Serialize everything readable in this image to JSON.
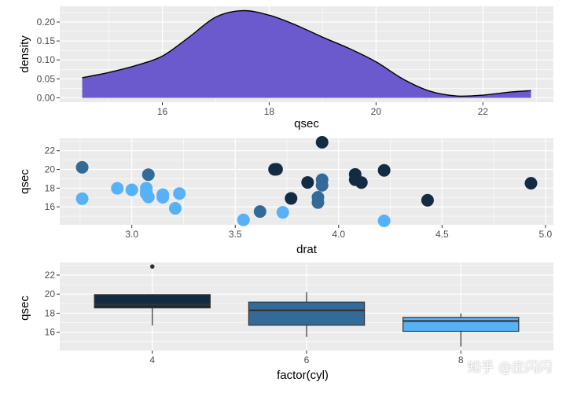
{
  "colors": {
    "panel_bg": "#ebebeb",
    "grid_major": "#ffffff",
    "density_fill": "#6a5acd",
    "box_fill_by_cyl": {
      "4": "#132b43",
      "6": "#336a98",
      "8": "#56b1f7"
    }
  },
  "watermark": "知乎 @庄闪闪",
  "chart_data": [
    {
      "type": "area",
      "title": "",
      "xlabel": "qsec",
      "ylabel": "density",
      "xlim": [
        14.5,
        22.9
      ],
      "ylim": [
        0,
        0.23
      ],
      "x_ticks": [
        16,
        18,
        20,
        22
      ],
      "y_ticks": [
        0.0,
        0.05,
        0.1,
        0.15,
        0.2
      ],
      "y_tick_labels": [
        "0.00",
        "0.05",
        "0.10",
        "0.15",
        "0.20"
      ],
      "grid": true,
      "x": [
        14.5,
        15.0,
        15.5,
        16.0,
        16.5,
        17.0,
        17.5,
        18.0,
        18.5,
        19.0,
        19.5,
        20.0,
        20.5,
        21.0,
        21.5,
        22.0,
        22.5,
        22.9
      ],
      "y": [
        0.053,
        0.067,
        0.085,
        0.11,
        0.16,
        0.213,
        0.23,
        0.218,
        0.192,
        0.16,
        0.13,
        0.095,
        0.05,
        0.018,
        0.005,
        0.007,
        0.015,
        0.019
      ]
    },
    {
      "type": "scatter",
      "title": "",
      "xlabel": "drat",
      "ylabel": "qsec",
      "xlim": [
        2.76,
        4.93
      ],
      "ylim": [
        14.5,
        22.9
      ],
      "x_ticks": [
        3.0,
        3.5,
        4.0,
        4.5,
        5.0
      ],
      "x_tick_labels": [
        "3.0",
        "3.5",
        "4.0",
        "4.5",
        "5.0"
      ],
      "y_ticks": [
        16,
        18,
        20,
        22
      ],
      "grid": true,
      "color_by": "cyl",
      "points": [
        {
          "x": 3.9,
          "y": 16.46,
          "cyl": 6
        },
        {
          "x": 3.9,
          "y": 17.02,
          "cyl": 6
        },
        {
          "x": 3.85,
          "y": 18.61,
          "cyl": 4
        },
        {
          "x": 3.08,
          "y": 19.44,
          "cyl": 6
        },
        {
          "x": 3.15,
          "y": 17.02,
          "cyl": 8
        },
        {
          "x": 2.76,
          "y": 20.22,
          "cyl": 6
        },
        {
          "x": 3.21,
          "y": 15.84,
          "cyl": 8
        },
        {
          "x": 3.69,
          "y": 20.0,
          "cyl": 4
        },
        {
          "x": 3.92,
          "y": 22.9,
          "cyl": 4
        },
        {
          "x": 3.92,
          "y": 18.3,
          "cyl": 6
        },
        {
          "x": 3.92,
          "y": 18.9,
          "cyl": 6
        },
        {
          "x": 3.07,
          "y": 17.4,
          "cyl": 8
        },
        {
          "x": 3.07,
          "y": 17.6,
          "cyl": 8
        },
        {
          "x": 3.07,
          "y": 18.0,
          "cyl": 8
        },
        {
          "x": 2.93,
          "y": 17.98,
          "cyl": 8
        },
        {
          "x": 3.0,
          "y": 17.82,
          "cyl": 8
        },
        {
          "x": 3.23,
          "y": 17.42,
          "cyl": 8
        },
        {
          "x": 4.08,
          "y": 19.47,
          "cyl": 4
        },
        {
          "x": 4.93,
          "y": 18.52,
          "cyl": 4
        },
        {
          "x": 4.22,
          "y": 19.9,
          "cyl": 4
        },
        {
          "x": 3.7,
          "y": 20.01,
          "cyl": 4
        },
        {
          "x": 2.76,
          "y": 16.87,
          "cyl": 8
        },
        {
          "x": 3.15,
          "y": 17.3,
          "cyl": 8
        },
        {
          "x": 3.73,
          "y": 15.41,
          "cyl": 8
        },
        {
          "x": 3.08,
          "y": 17.05,
          "cyl": 8
        },
        {
          "x": 4.08,
          "y": 18.9,
          "cyl": 4
        },
        {
          "x": 4.43,
          "y": 16.7,
          "cyl": 4
        },
        {
          "x": 3.77,
          "y": 16.9,
          "cyl": 4
        },
        {
          "x": 4.22,
          "y": 14.5,
          "cyl": 8
        },
        {
          "x": 3.62,
          "y": 15.5,
          "cyl": 6
        },
        {
          "x": 3.54,
          "y": 14.6,
          "cyl": 8
        },
        {
          "x": 4.11,
          "y": 18.6,
          "cyl": 4
        }
      ]
    },
    {
      "type": "box",
      "title": "",
      "xlabel": "factor(cyl)",
      "ylabel": "qsec",
      "categories": [
        "4",
        "6",
        "8"
      ],
      "ylim": [
        14.5,
        22.9
      ],
      "y_ticks": [
        16,
        18,
        20,
        22
      ],
      "grid": true,
      "boxes": [
        {
          "category": "4",
          "min": 16.7,
          "q1": 18.56,
          "median": 18.9,
          "q3": 19.95,
          "max": 20.01,
          "outliers": [
            22.9
          ]
        },
        {
          "category": "6",
          "min": 15.5,
          "q1": 16.74,
          "median": 18.3,
          "q3": 19.17,
          "max": 20.22,
          "outliers": []
        },
        {
          "category": "8",
          "min": 14.5,
          "q1": 16.1,
          "median": 17.18,
          "q3": 17.56,
          "max": 18.0,
          "outliers": []
        }
      ]
    }
  ]
}
